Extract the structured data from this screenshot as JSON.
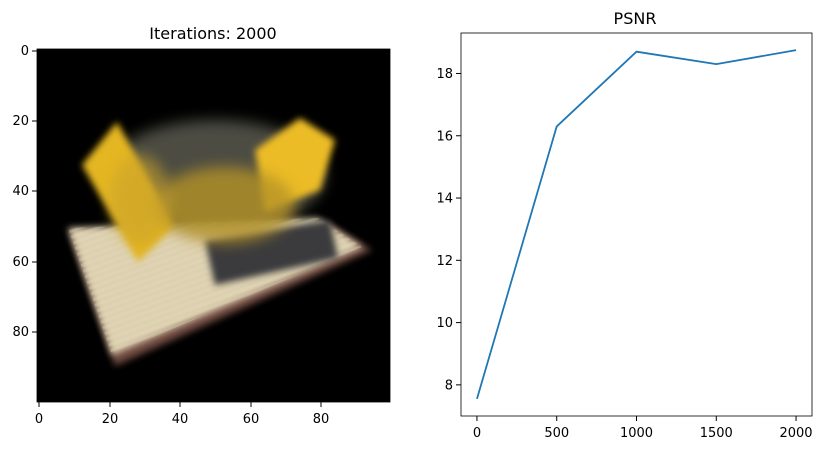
{
  "chart_data": [
    {
      "type": "image",
      "title": "Iterations: 2000",
      "xticks": [
        0,
        20,
        40,
        60,
        80
      ],
      "yticks": [
        0,
        20,
        40,
        60,
        80
      ],
      "xlim": [
        -0.5,
        99.5
      ],
      "ylim": [
        99.5,
        -0.5
      ],
      "content": "rendered scene: yellow blocks on a tilted cream board with brown edge, black background"
    },
    {
      "type": "line",
      "title": "PSNR",
      "xlabel": "",
      "ylabel": "",
      "x": [
        0,
        500,
        1000,
        1500,
        2000
      ],
      "series": [
        {
          "values": [
            7.55,
            16.3,
            18.7,
            18.3,
            18.75
          ],
          "color": "#1f77b4"
        }
      ],
      "xticks": [
        0,
        500,
        1000,
        1500,
        2000
      ],
      "yticks": [
        8,
        10,
        12,
        14,
        16,
        18
      ],
      "xlim": [
        -100,
        2100
      ],
      "ylim": [
        7.0,
        19.3
      ],
      "grid": false
    }
  ]
}
